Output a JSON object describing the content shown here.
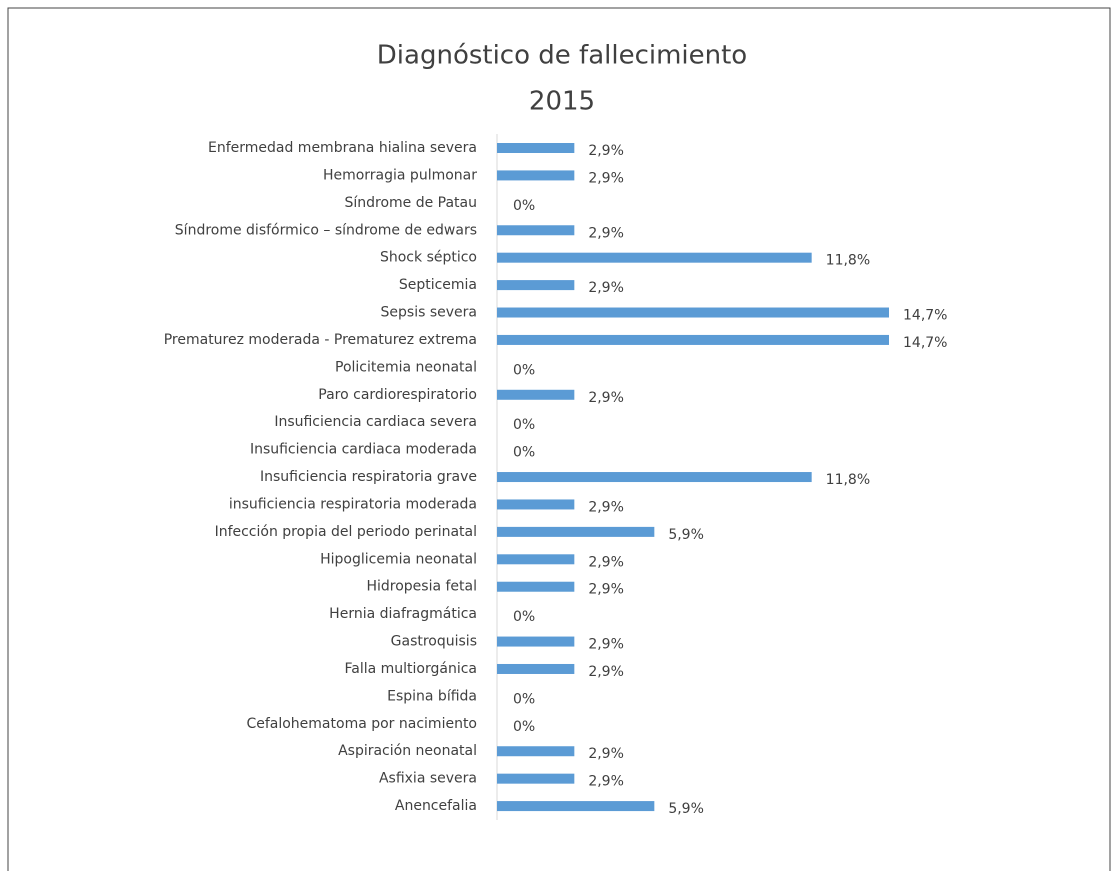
{
  "chart_data": {
    "type": "hbar",
    "title": "Diagnóstico de fallecimiento",
    "subtitle": "2015",
    "categories": [
      "Enfermedad membrana hialina severa",
      "Hemorragia pulmonar",
      "Síndrome de Patau",
      "Síndrome disfórmico – síndrome de edwars",
      "Shock séptico",
      "Septicemia",
      "Sepsis severa",
      "Prematurez moderada - Prematurez extrema",
      "Policitemia neonatal",
      "Paro cardiorespiratorio",
      "Insuficiencia cardiaca severa",
      "Insuficiencia cardiaca moderada",
      "Insuficiencia respiratoria grave",
      "insuficiencia respiratoria moderada",
      "Infección propia del periodo perinatal",
      "Hipoglicemia neonatal",
      "Hidropesia fetal",
      "Hernia diafragmática",
      "Gastroquisis",
      "Falla multiorgánica",
      "Espina bífida",
      "Cefalohematoma por nacimiento",
      "Aspiración neonatal",
      "Asfixia severa",
      "Anencefalia"
    ],
    "values": [
      2.9,
      2.9,
      0,
      2.9,
      11.8,
      2.9,
      14.7,
      14.7,
      0,
      2.9,
      0,
      0,
      11.8,
      2.9,
      5.9,
      2.9,
      2.9,
      0,
      2.9,
      2.9,
      0,
      0,
      2.9,
      2.9,
      5.9
    ],
    "value_labels": [
      "2,9%",
      "2,9%",
      "0%",
      "2,9%",
      "11,8%",
      "2,9%",
      "14,7%",
      "14,7%",
      "0%",
      "2,9%",
      "0%",
      "0%",
      "11,8%",
      "2,9%",
      "5,9%",
      "2,9%",
      "2,9%",
      "0%",
      "2,9%",
      "2,9%",
      "0%",
      "0%",
      "2,9%",
      "2,9%",
      "5,9%"
    ],
    "color": "#5b9bd5"
  }
}
